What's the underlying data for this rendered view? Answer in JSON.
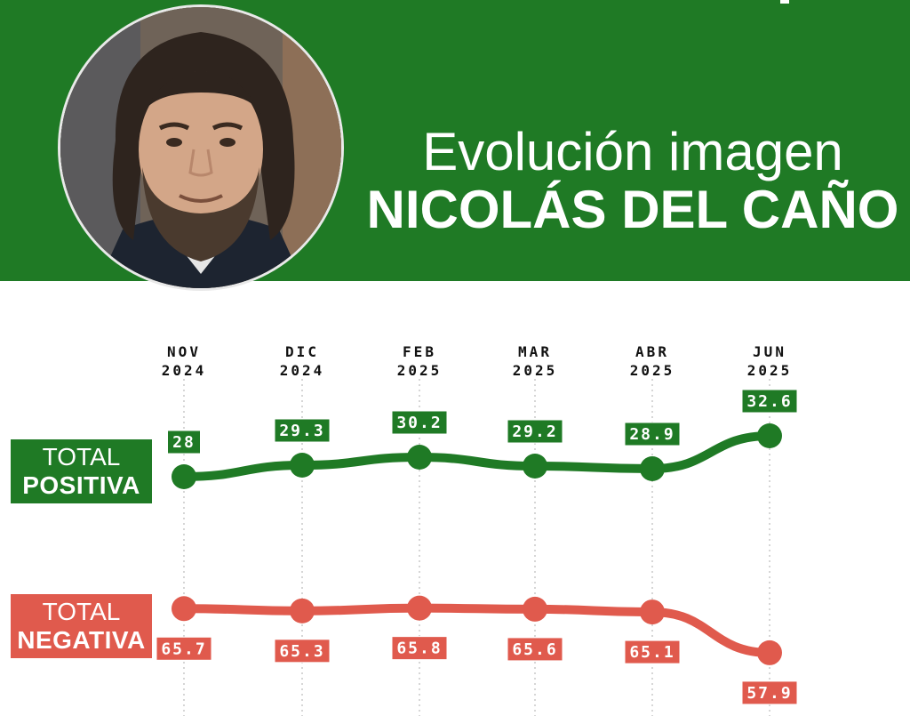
{
  "header": {
    "title_line1": "Evolución imagen",
    "title_line2": "NICOLÁS DEL CAÑO"
  },
  "legend": {
    "positive": {
      "line1": "TOTAL",
      "line2": "POSITIVA"
    },
    "negative": {
      "line1": "TOTAL",
      "line2": "NEGATIVA"
    }
  },
  "colors": {
    "header_bg": "#1f7a25",
    "positive": "#1f7a25",
    "negative": "#e05a4d",
    "guide": "#c8c8c8"
  },
  "chart_data": {
    "type": "line",
    "categories": [
      [
        "NOV",
        "2024"
      ],
      [
        "DIC",
        "2024"
      ],
      [
        "FEB",
        "2025"
      ],
      [
        "MAR",
        "2025"
      ],
      [
        "ABR",
        "2025"
      ],
      [
        "JUN",
        "2025"
      ]
    ],
    "series": [
      {
        "name": "TOTAL POSITIVA",
        "values": [
          28,
          29.3,
          30.2,
          29.2,
          28.9,
          32.6
        ],
        "labels": [
          "28",
          "29.3",
          "30.2",
          "29.2",
          "28.9",
          "32.6"
        ]
      },
      {
        "name": "TOTAL NEGATIVA",
        "values": [
          65.7,
          65.3,
          65.8,
          65.6,
          65.1,
          57.9
        ],
        "labels": [
          "65.7",
          "65.3",
          "65.8",
          "65.6",
          "65.1",
          "57.9"
        ]
      }
    ],
    "grid": "vertical dotted guide per category",
    "legend": "left"
  }
}
